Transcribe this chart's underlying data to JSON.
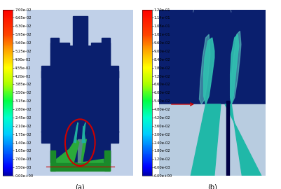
{
  "title_a": "(a)",
  "title_b": "(b)",
  "colorbar_a_ticks": [
    "7.00e-02",
    "6.65e-02",
    "6.30e-02",
    "5.95e-02",
    "5.60e-02",
    "5.25e-02",
    "4.90e-02",
    "4.55e-02",
    "4.20e-02",
    "3.85e-02",
    "3.50e-02",
    "3.15e-02",
    "2.80e-02",
    "2.45e-02",
    "2.10e-02",
    "1.75e-02",
    "1.40e-02",
    "1.05e-02",
    "7.00e-03",
    "3.50e-03",
    "0.00e+00"
  ],
  "colorbar_b_ticks": [
    "1.20e-01",
    "1.14e-01",
    "1.08e-01",
    "1.02e-01",
    "9.60e-02",
    "9.00e-02",
    "8.40e-02",
    "7.80e-02",
    "7.20e-02",
    "6.60e-02",
    "6.00e-02",
    "5.40e-02",
    "4.80e-02",
    "4.20e-02",
    "3.60e-02",
    "3.00e-02",
    "2.40e-02",
    "1.80e-02",
    "1.20e-02",
    "6.00e-03",
    "0.00e+00"
  ],
  "bg_deep_blue": "#0a1f6e",
  "bg_light_blue_a": "#c0d0e8",
  "bg_light_blue_b": "#b8ccdc",
  "arrow_color": "#cc0000",
  "circle_color": "#cc0000",
  "green_dark": "#1a8a2a",
  "green_mid": "#2aaa3a",
  "teal_color": "#20b0a0",
  "dark_navy": "#000033",
  "pipe_blue": "#0a1f6e",
  "label_fontsize": 7,
  "tick_fontsize": 3.8
}
